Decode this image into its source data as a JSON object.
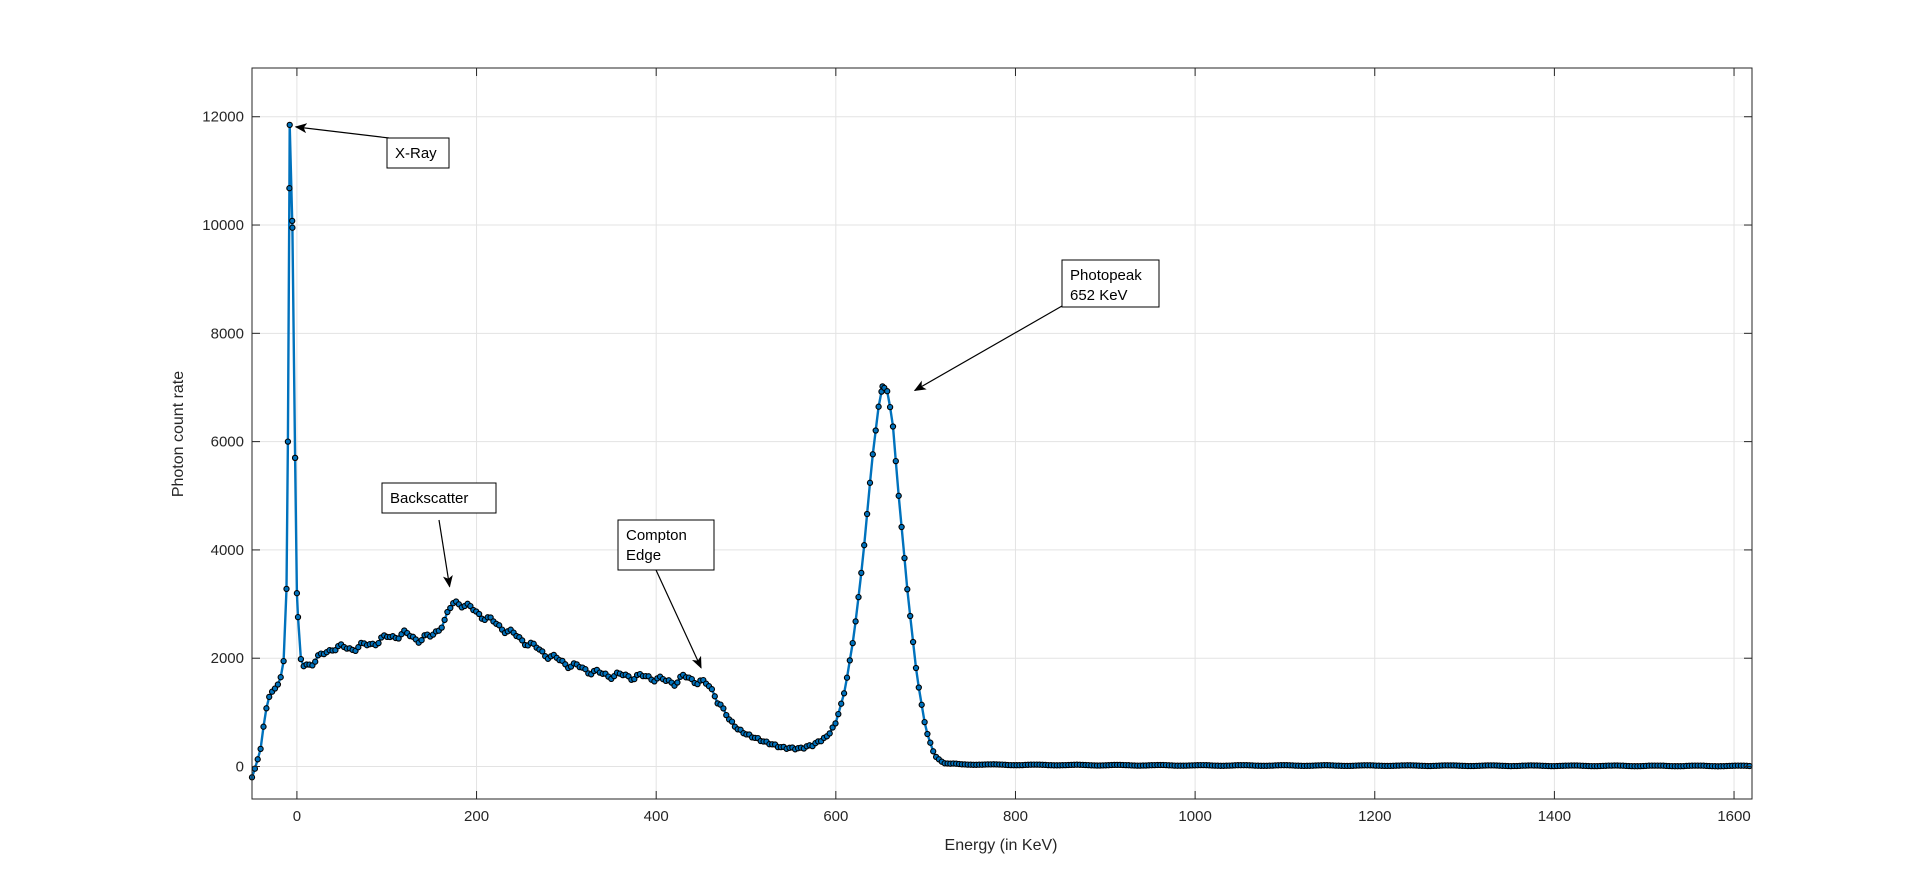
{
  "chart_data": {
    "type": "line",
    "xlabel": "Energy (in KeV)",
    "ylabel": "Photon count rate",
    "xlim": [
      -50,
      1620
    ],
    "ylim": [
      -600,
      12900
    ],
    "xticks": [
      0,
      200,
      400,
      600,
      800,
      1000,
      1200,
      1400,
      1600
    ],
    "yticks": [
      0,
      2000,
      4000,
      6000,
      8000,
      10000,
      12000
    ],
    "grid": true,
    "line_color": "#0072bd",
    "marker_color": "#000000",
    "series": [
      {
        "key_points": [
          [
            -50,
            -200
          ],
          [
            -45,
            50
          ],
          [
            -40,
            350
          ],
          [
            -36,
            900
          ],
          [
            -32,
            1250
          ],
          [
            -27,
            1400
          ],
          [
            -22,
            1480
          ],
          [
            -18,
            1650
          ],
          [
            -15,
            1900
          ],
          [
            -12,
            2600
          ],
          [
            -10,
            6000
          ],
          [
            -8,
            11850
          ],
          [
            -5,
            9950
          ],
          [
            -2,
            5700
          ],
          [
            0,
            3200
          ],
          [
            3,
            2100
          ],
          [
            6,
            1850
          ],
          [
            20,
            1950
          ],
          [
            40,
            2200
          ],
          [
            60,
            2180
          ],
          [
            80,
            2250
          ],
          [
            100,
            2380
          ],
          [
            120,
            2450
          ],
          [
            135,
            2350
          ],
          [
            150,
            2400
          ],
          [
            165,
            2700
          ],
          [
            175,
            3050
          ],
          [
            185,
            3000
          ],
          [
            200,
            2850
          ],
          [
            220,
            2650
          ],
          [
            240,
            2450
          ],
          [
            260,
            2250
          ],
          [
            280,
            2050
          ],
          [
            300,
            1900
          ],
          [
            320,
            1800
          ],
          [
            340,
            1700
          ],
          [
            360,
            1680
          ],
          [
            380,
            1660
          ],
          [
            400,
            1640
          ],
          [
            410,
            1570
          ],
          [
            420,
            1560
          ],
          [
            430,
            1650
          ],
          [
            440,
            1600
          ],
          [
            450,
            1580
          ],
          [
            460,
            1450
          ],
          [
            470,
            1200
          ],
          [
            480,
            900
          ],
          [
            490,
            700
          ],
          [
            500,
            600
          ],
          [
            520,
            460
          ],
          [
            540,
            350
          ],
          [
            560,
            330
          ],
          [
            575,
            400
          ],
          [
            590,
            550
          ],
          [
            600,
            800
          ],
          [
            610,
            1400
          ],
          [
            620,
            2400
          ],
          [
            630,
            3800
          ],
          [
            640,
            5600
          ],
          [
            648,
            6700
          ],
          [
            652,
            7020
          ],
          [
            657,
            6950
          ],
          [
            663,
            6400
          ],
          [
            670,
            5000
          ],
          [
            680,
            3200
          ],
          [
            690,
            1700
          ],
          [
            700,
            700
          ],
          [
            710,
            200
          ],
          [
            720,
            60
          ],
          [
            740,
            40
          ],
          [
            800,
            30
          ],
          [
            1000,
            20
          ],
          [
            1300,
            15
          ],
          [
            1620,
            10
          ]
        ]
      }
    ],
    "annotations": [
      {
        "text": [
          "X-Ray"
        ],
        "target": [
          -8,
          11850
        ]
      },
      {
        "text": [
          "Backscatter"
        ],
        "target": [
          170,
          3100
        ]
      },
      {
        "text": [
          "Compton",
          "Edge"
        ],
        "target": [
          450,
          1600
        ]
      },
      {
        "text": [
          "Photopeak",
          "652 KeV"
        ],
        "target": [
          670,
          7000
        ]
      }
    ]
  }
}
